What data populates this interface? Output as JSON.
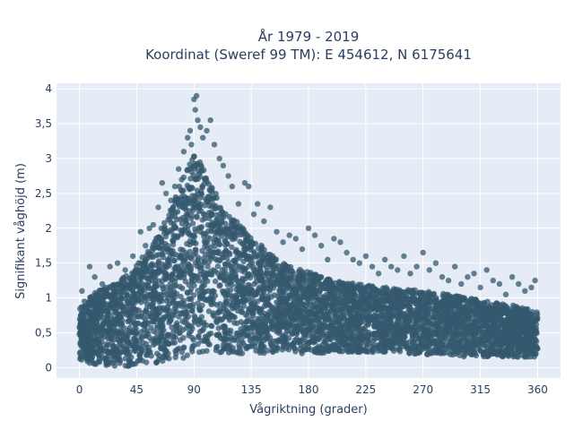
{
  "chart_data": {
    "type": "scatter",
    "title": "År 1979 - 2019",
    "subtitle": "Koordinat (Sweref 99 TM): E 454612, N 6175641",
    "xlabel": "Vågriktning (grader)",
    "ylabel": "Signifikant våghöjd (m)",
    "xlim": [
      -18,
      378
    ],
    "ylim": [
      -0.15,
      4.08
    ],
    "xticks": [
      0,
      45,
      90,
      135,
      180,
      225,
      270,
      315,
      360
    ],
    "xtick_labels": [
      "0",
      "45",
      "90",
      "135",
      "180",
      "225",
      "270",
      "315",
      "360"
    ],
    "yticks": [
      0,
      0.5,
      1,
      1.5,
      2,
      2.5,
      3,
      3.5,
      4
    ],
    "ytick_labels": [
      "0",
      "0,5",
      "1",
      "1,5",
      "2",
      "2,5",
      "3",
      "3,5",
      "4"
    ],
    "grid": true,
    "background": "#e5ecf6",
    "marker_color": "#34586e",
    "envelope": {
      "x": [
        0,
        10,
        20,
        30,
        40,
        50,
        60,
        70,
        80,
        85,
        90,
        95,
        100,
        110,
        120,
        130,
        140,
        150,
        160,
        170,
        180,
        190,
        200,
        220,
        240,
        260,
        280,
        300,
        320,
        340,
        360
      ],
      "upper": [
        0.85,
        1.05,
        1.15,
        1.25,
        1.38,
        1.6,
        1.85,
        2.2,
        2.7,
        2.95,
        3.05,
        2.95,
        2.75,
        2.4,
        2.15,
        2.0,
        1.8,
        1.65,
        1.5,
        1.42,
        1.38,
        1.3,
        1.25,
        1.2,
        1.15,
        1.12,
        1.08,
        1.02,
        0.95,
        0.9,
        0.8
      ],
      "lower": [
        0.1,
        0.05,
        0.03,
        0.02,
        0.02,
        0.03,
        0.05,
        0.08,
        0.12,
        0.15,
        0.18,
        0.2,
        0.22,
        0.2,
        0.2,
        0.2,
        0.2,
        0.2,
        0.2,
        0.2,
        0.2,
        0.2,
        0.22,
        0.22,
        0.22,
        0.2,
        0.18,
        0.16,
        0.15,
        0.15,
        0.15
      ]
    },
    "outliers": {
      "x": [
        2,
        4,
        8,
        12,
        18,
        24,
        30,
        36,
        42,
        48,
        52,
        55,
        58,
        62,
        65,
        68,
        72,
        75,
        78,
        82,
        85,
        87,
        88,
        90,
        91,
        92,
        93,
        95,
        97,
        100,
        103,
        106,
        110,
        113,
        117,
        120,
        125,
        130,
        133,
        137,
        140,
        145,
        150,
        155,
        160,
        165,
        170,
        175,
        180,
        185,
        190,
        195,
        200,
        205,
        210,
        215,
        220,
        225,
        230,
        235,
        240,
        245,
        250,
        255,
        260,
        265,
        270,
        275,
        280,
        285,
        290,
        295,
        300,
        305,
        310,
        315,
        320,
        325,
        330,
        335,
        340,
        345,
        350,
        355,
        358
      ],
      "y": [
        1.1,
        0.95,
        1.45,
        1.3,
        1.2,
        1.45,
        1.5,
        1.4,
        1.6,
        1.95,
        1.75,
        2.0,
        2.05,
        2.3,
        2.65,
        2.5,
        2.4,
        2.6,
        2.85,
        3.1,
        3.3,
        3.4,
        3.2,
        3.85,
        3.7,
        3.9,
        3.55,
        3.45,
        3.3,
        3.4,
        3.55,
        3.2,
        3.0,
        2.9,
        2.75,
        2.6,
        2.35,
        2.65,
        2.6,
        2.2,
        2.35,
        2.1,
        2.3,
        1.95,
        1.8,
        1.9,
        1.85,
        1.7,
        2.0,
        1.9,
        1.75,
        1.55,
        1.85,
        1.8,
        1.65,
        1.55,
        1.5,
        1.6,
        1.45,
        1.35,
        1.55,
        1.45,
        1.4,
        1.6,
        1.35,
        1.45,
        1.65,
        1.4,
        1.5,
        1.3,
        1.25,
        1.45,
        1.2,
        1.3,
        1.35,
        1.15,
        1.4,
        1.25,
        1.2,
        1.05,
        1.3,
        1.2,
        1.1,
        1.15,
        1.25
      ]
    }
  }
}
